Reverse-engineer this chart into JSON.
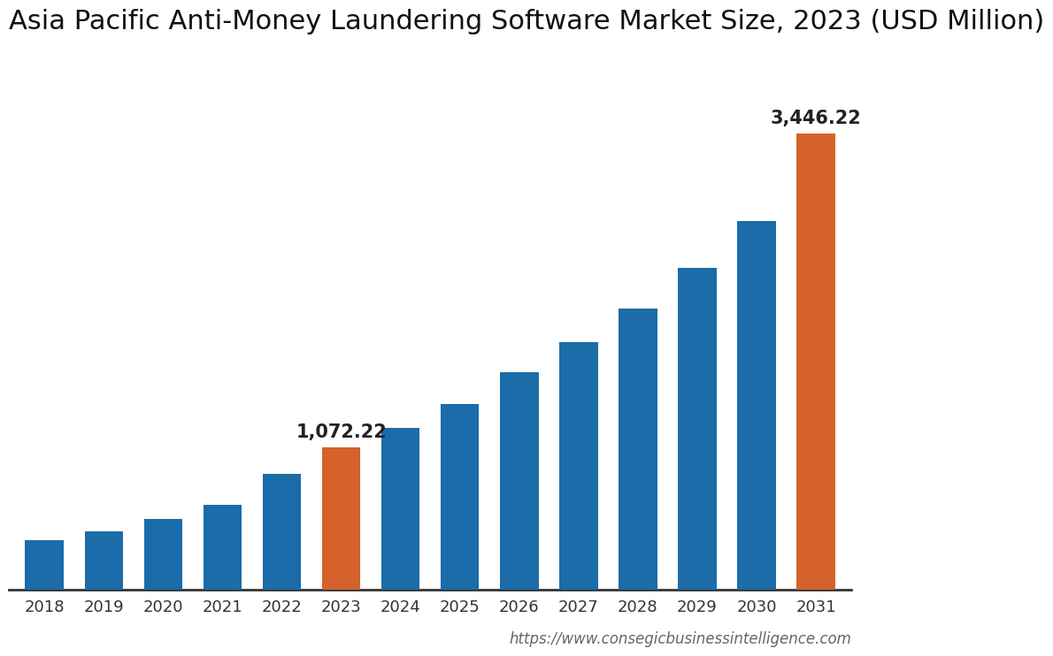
{
  "title": "Asia Pacific Anti-Money Laundering Software Market Size, 2023 (USD Million)",
  "categories": [
    "2018",
    "2019",
    "2020",
    "2021",
    "2022",
    "2023",
    "2024",
    "2025",
    "2026",
    "2027",
    "2028",
    "2029",
    "2030",
    "2031"
  ],
  "values": [
    370,
    440,
    530,
    640,
    870,
    1072.22,
    1220,
    1400,
    1640,
    1870,
    2120,
    2430,
    2780,
    3446.22
  ],
  "bar_colors": [
    "#1b6ca8",
    "#1b6ca8",
    "#1b6ca8",
    "#1b6ca8",
    "#1b6ca8",
    "#d4622a",
    "#1b6ca8",
    "#1b6ca8",
    "#1b6ca8",
    "#1b6ca8",
    "#1b6ca8",
    "#1b6ca8",
    "#1b6ca8",
    "#d4622a"
  ],
  "annotate_bars": [
    5,
    13
  ],
  "annotations": [
    "1,072.22",
    "3,446.22"
  ],
  "title_fontsize": 22,
  "tick_fontsize": 13,
  "annotation_fontsize": 15,
  "background_color": "#ffffff",
  "bar_width": 0.65,
  "ylim": [
    0,
    4000
  ],
  "url_text": "https://www.consegicbusinessintelligence.com",
  "url_fontsize": 12,
  "url_color": "#666666"
}
